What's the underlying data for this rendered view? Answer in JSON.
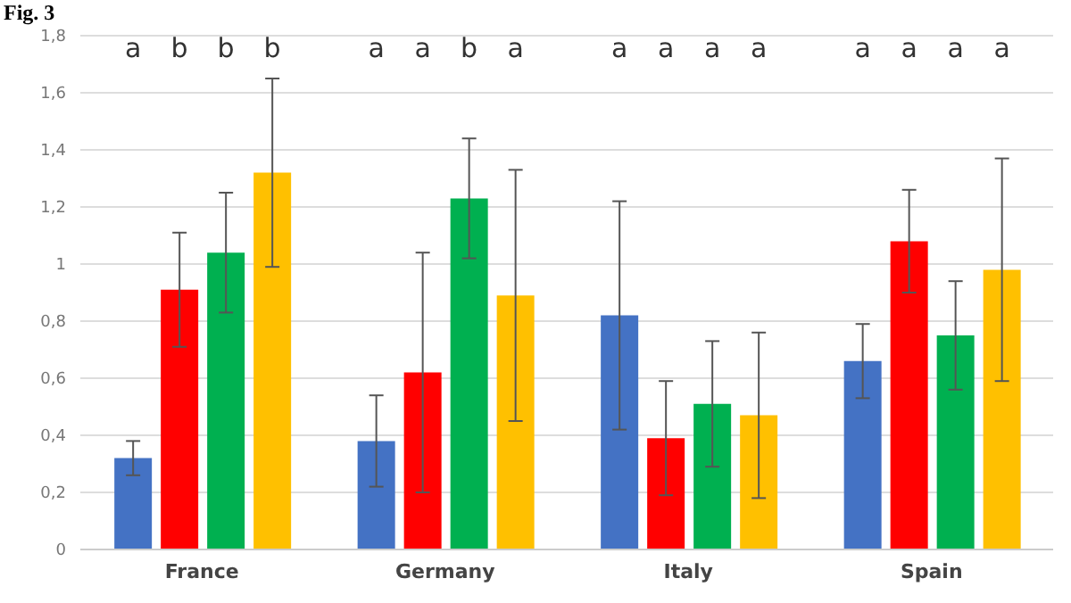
{
  "chart_data": {
    "type": "bar",
    "title": "Fig. 3",
    "categories": [
      "France",
      "Germany",
      "Italy",
      "Spain"
    ],
    "series": [
      {
        "color": "#4472c4",
        "values": [
          0.32,
          0.38,
          0.82,
          0.66
        ],
        "errors": [
          0.06,
          0.16,
          0.4,
          0.13
        ]
      },
      {
        "color": "#ff0000",
        "values": [
          0.91,
          0.62,
          0.39,
          1.08
        ],
        "errors": [
          0.2,
          0.42,
          0.2,
          0.18
        ]
      },
      {
        "color": "#00b050",
        "values": [
          1.04,
          1.23,
          0.51,
          0.75
        ],
        "errors": [
          0.21,
          0.21,
          0.22,
          0.19
        ]
      },
      {
        "color": "#ffc000",
        "values": [
          1.32,
          0.89,
          0.47,
          0.98
        ],
        "errors": [
          0.33,
          0.44,
          0.29,
          0.39
        ]
      }
    ],
    "annotations": [
      "a",
      "b",
      "b",
      "b",
      "a",
      "a",
      "b",
      "a",
      "a",
      "a",
      "a",
      "a",
      "a",
      "a",
      "a",
      "a"
    ],
    "ylim": [
      0,
      1.8
    ],
    "yticks": [
      0,
      {
        "value": 0.2,
        "label": "0,2"
      },
      {
        "value": 0.4,
        "label": "0,4"
      },
      {
        "value": 0.6,
        "label": "0,6"
      },
      {
        "value": 0.8,
        "label": "0,8"
      },
      1,
      {
        "value": 1.2,
        "label": "1,2"
      },
      {
        "value": 1.4,
        "label": "1,4"
      },
      {
        "value": 1.6,
        "label": "1,6"
      },
      {
        "value": 1.8,
        "label": "1,8"
      }
    ],
    "grid": "y",
    "legend": false
  }
}
